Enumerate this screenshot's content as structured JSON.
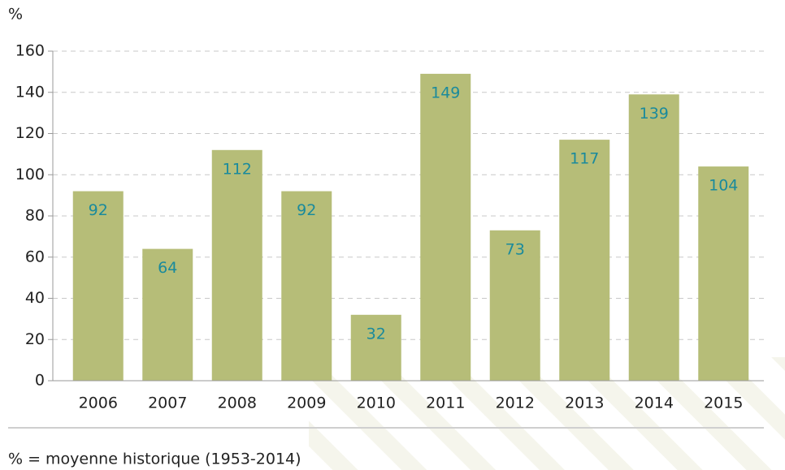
{
  "chart_data": {
    "type": "bar",
    "y_label": "%",
    "footnote": "% = moyenne historique (1953-2014)",
    "categories": [
      "2006",
      "2007",
      "2008",
      "2009",
      "2010",
      "2011",
      "2012",
      "2013",
      "2014",
      "2015"
    ],
    "values": [
      92,
      64,
      112,
      92,
      32,
      149,
      73,
      117,
      139,
      104
    ],
    "color": "#b6bd78",
    "label_color": "#1a8a9c",
    "ylim": [
      0,
      160
    ],
    "yticks": [
      0,
      20,
      40,
      60,
      80,
      100,
      120,
      140,
      160
    ],
    "grid": true
  }
}
